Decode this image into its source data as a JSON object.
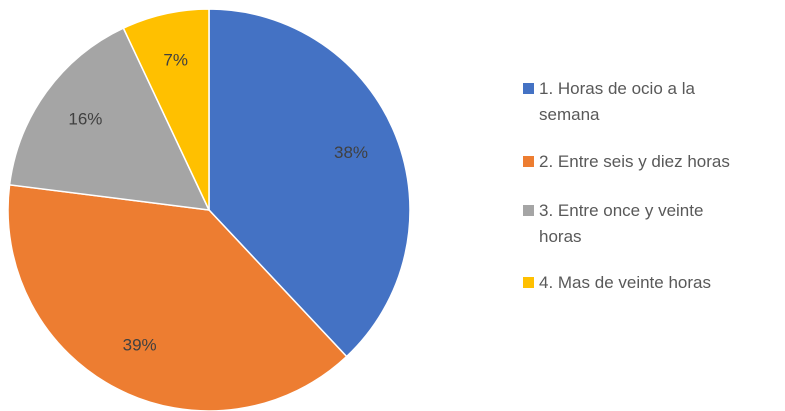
{
  "chart_data": {
    "type": "pie",
    "series": [
      {
        "name": "1. Horas de ocio a la semana",
        "color": "#4472c4"
      },
      {
        "name": "2. Entre seis y diez horas",
        "color": "#ed7d31"
      },
      {
        "name": "3. Entre once y veinte horas",
        "color": "#a5a5a5"
      },
      {
        "name": "4. Mas de veinte horas",
        "color": "#ffc000"
      }
    ],
    "values": [
      38,
      39,
      16,
      7
    ],
    "value_labels": [
      "38%",
      "39%",
      "16%",
      "7%"
    ],
    "legend": "right"
  }
}
